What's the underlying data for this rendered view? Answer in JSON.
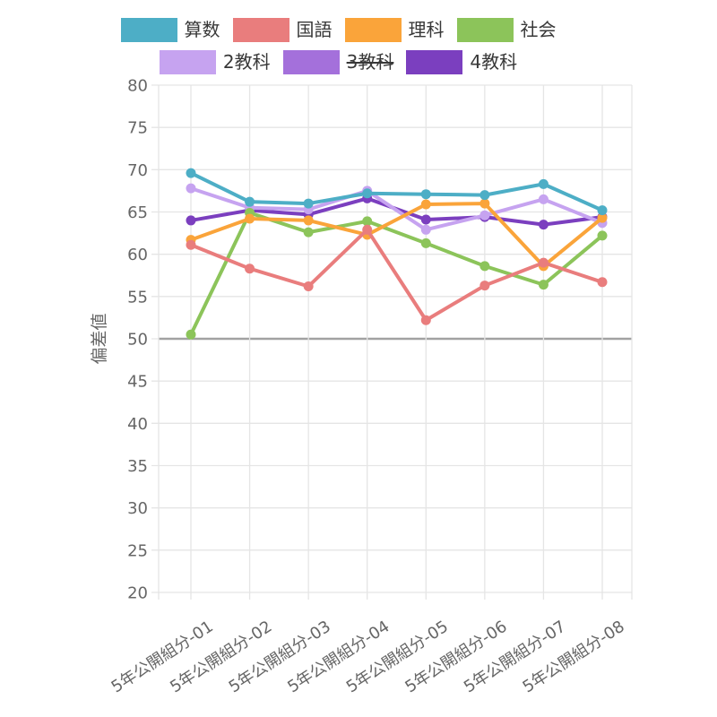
{
  "chart_data": {
    "type": "line",
    "title": "",
    "ylabel": "偏差値",
    "xlabel": "",
    "ylim": [
      20,
      80
    ],
    "ytick_step": 5,
    "reference_line": 50,
    "grid": true,
    "legend_position": "top",
    "categories": [
      "5年公開組分-01",
      "5年公開組分-02",
      "5年公開組分-03",
      "5年公開組分-04",
      "5年公開組分-05",
      "5年公開組分-06",
      "5年公開組分-07",
      "5年公開組分-08"
    ],
    "series": [
      {
        "id": "sansuu",
        "name": "算数",
        "color": "#4DAEC6",
        "hidden": false,
        "values": [
          69.6,
          66.2,
          66.0,
          67.2,
          67.1,
          67.0,
          68.3,
          65.2
        ]
      },
      {
        "id": "kokugo",
        "name": "国語",
        "color": "#E97D7D",
        "hidden": false,
        "values": [
          61.1,
          58.3,
          56.2,
          62.9,
          52.2,
          56.3,
          59.0,
          56.7
        ]
      },
      {
        "id": "rika",
        "name": "理科",
        "color": "#FAA43A",
        "hidden": false,
        "values": [
          61.7,
          64.2,
          64.0,
          62.3,
          65.9,
          66.0,
          58.6,
          64.3
        ]
      },
      {
        "id": "shakai",
        "name": "社会",
        "color": "#8CC45A",
        "hidden": false,
        "values": [
          50.5,
          64.9,
          62.6,
          63.9,
          61.3,
          58.6,
          56.4,
          62.2
        ]
      },
      {
        "id": "2kyouka",
        "name": "2教科",
        "color": "#C6A3F0",
        "hidden": false,
        "values": [
          67.8,
          65.5,
          65.3,
          67.5,
          62.9,
          64.6,
          66.5,
          63.7
        ]
      },
      {
        "id": "3kyouka",
        "name": "3教科",
        "color": "#A470DB",
        "hidden": true,
        "values": []
      },
      {
        "id": "4kyouka",
        "name": "4教科",
        "color": "#7B3FBF",
        "hidden": false,
        "values": [
          64.0,
          65.2,
          64.7,
          66.6,
          64.1,
          64.4,
          63.5,
          64.4
        ]
      }
    ],
    "colors": {
      "grid": "#E5E5E5",
      "reference_line": "#A2A2A2",
      "tick_text": "#666666",
      "legend_text": "#383838"
    }
  }
}
